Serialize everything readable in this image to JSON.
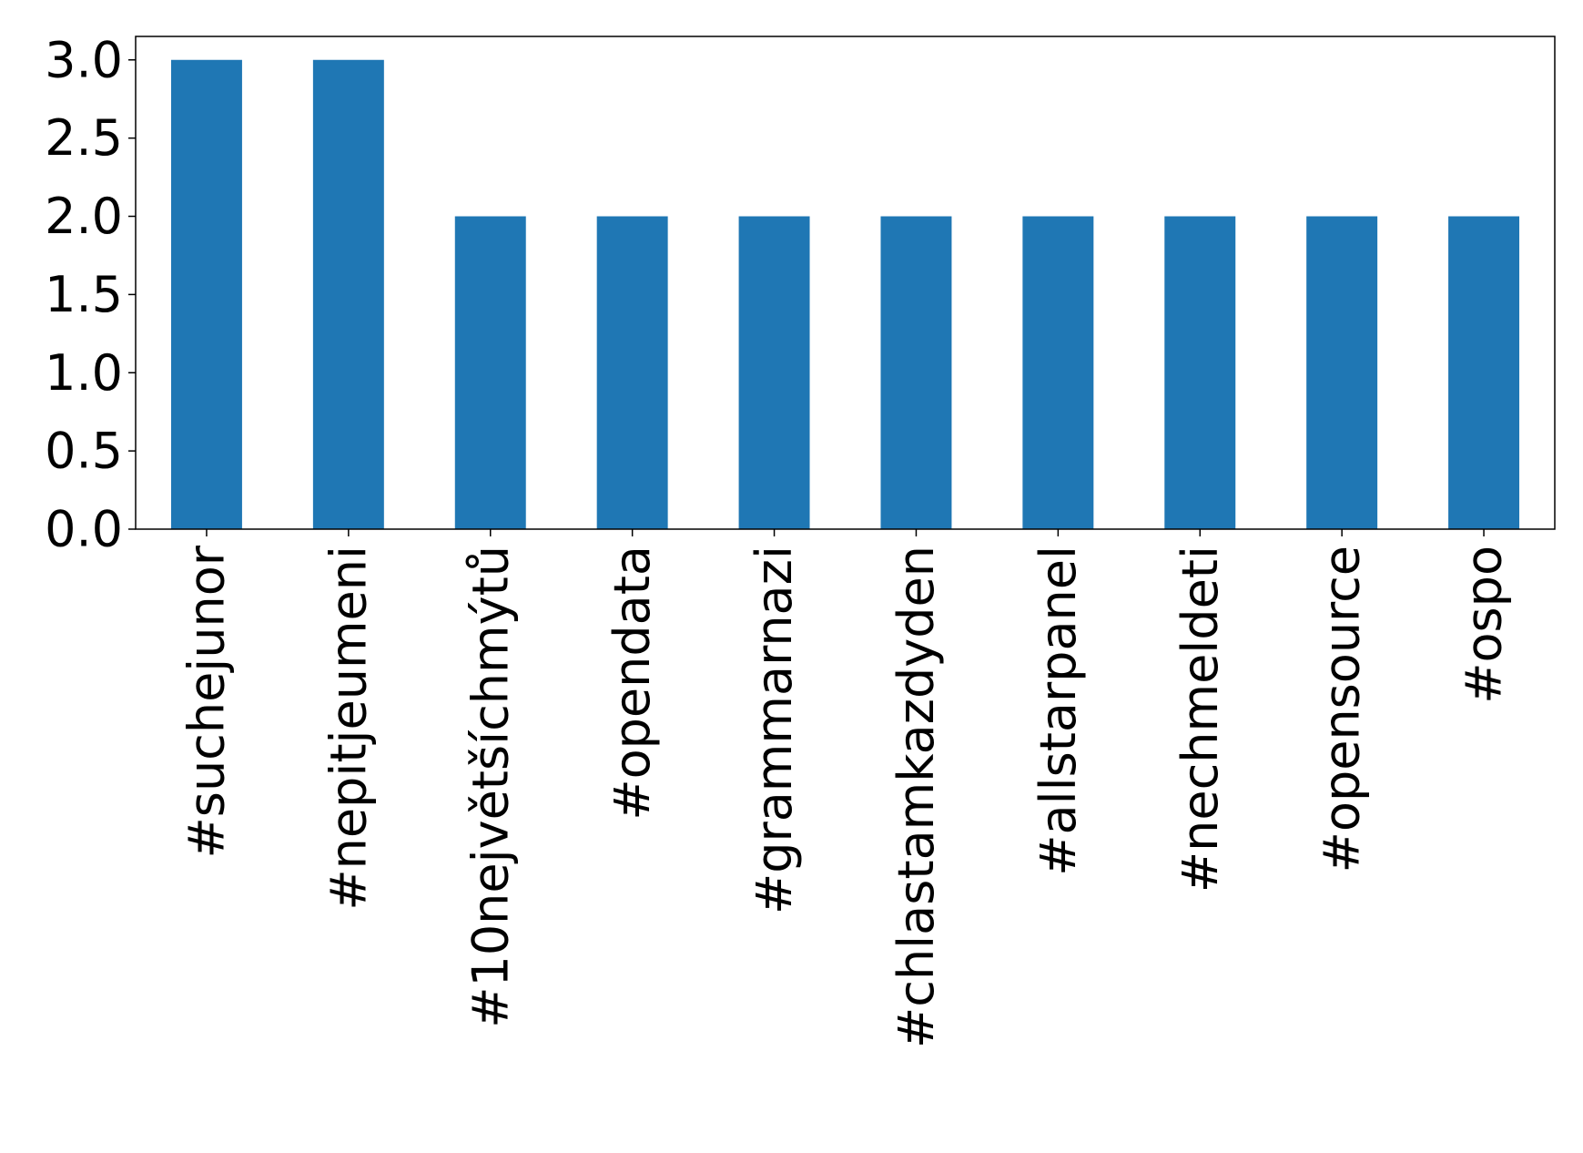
{
  "chart_data": {
    "type": "bar",
    "categories": [
      "#suchejunor",
      "#nepitjeumeni",
      "#10největšíchmýtů",
      "#opendata",
      "#grammarnazi",
      "#chlastamkazdyden",
      "#allstarpanel",
      "#nechmeldeti",
      "#opensource",
      "#ospo"
    ],
    "values": [
      3,
      3,
      2,
      2,
      2,
      2,
      2,
      2,
      2,
      2
    ],
    "color": "#1f77b4",
    "ylim": [
      0,
      3.15
    ],
    "yticks": [
      {
        "value": 0,
        "label": "0.0"
      },
      0.5,
      {
        "value": 1,
        "label": "1.0"
      },
      1.5,
      {
        "value": 2,
        "label": "2.0"
      },
      2.5,
      {
        "value": 3,
        "label": "3.0"
      }
    ],
    "grid": false
  }
}
